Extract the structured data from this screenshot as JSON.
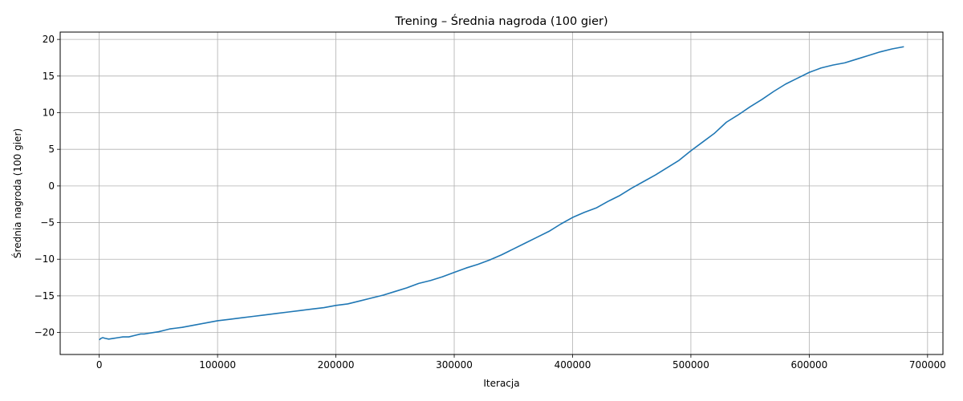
{
  "chart_data": {
    "type": "line",
    "title": "Trening – Średnia nagroda (100 gier)",
    "xlabel": "Iteracja",
    "ylabel": "Średnia nagroda (100 gier)",
    "xlim": [
      -33000,
      713000
    ],
    "ylim": [
      -23.0,
      21.0
    ],
    "xticks": [
      0,
      100000,
      200000,
      300000,
      400000,
      500000,
      600000,
      700000
    ],
    "xtick_labels": [
      "0",
      "100000",
      "200000",
      "300000",
      "400000",
      "500000",
      "600000",
      "700000"
    ],
    "yticks": [
      -20,
      -15,
      -10,
      -5,
      0,
      5,
      10,
      15,
      20
    ],
    "ytick_labels": [
      "−20",
      "−15",
      "−10",
      "−5",
      "0",
      "5",
      "10",
      "15",
      "20"
    ],
    "grid": true,
    "line_color": "#1f77b4",
    "series": [
      {
        "x": [
          0,
          1500,
          3000,
          5000,
          8000,
          12000,
          16000,
          20000,
          25000,
          30000,
          35000,
          38000,
          42000,
          46000,
          50000,
          55000,
          60000,
          65000,
          70000,
          80000,
          90000,
          100000,
          110000,
          120000,
          130000,
          140000,
          150000,
          160000,
          170000,
          180000,
          190000,
          200000,
          210000,
          220000,
          230000,
          240000,
          250000,
          260000,
          270000,
          280000,
          290000,
          300000,
          310000,
          320000,
          330000,
          340000,
          350000,
          360000,
          370000,
          380000,
          390000,
          400000,
          410000,
          420000,
          430000,
          440000,
          450000,
          460000,
          470000,
          480000,
          490000,
          500000,
          510000,
          520000,
          530000,
          540000,
          550000,
          560000,
          570000,
          580000,
          590000,
          600000,
          610000,
          620000,
          630000,
          640000,
          650000,
          660000,
          670000,
          680000
        ],
        "y": [
          -21.0,
          -20.8,
          -20.7,
          -20.8,
          -20.9,
          -20.8,
          -20.7,
          -20.6,
          -20.6,
          -20.4,
          -20.2,
          -20.2,
          -20.1,
          -20.0,
          -19.9,
          -19.7,
          -19.5,
          -19.4,
          -19.3,
          -19.0,
          -18.7,
          -18.4,
          -18.2,
          -18.0,
          -17.8,
          -17.6,
          -17.4,
          -17.2,
          -17.0,
          -16.8,
          -16.6,
          -16.3,
          -16.1,
          -15.7,
          -15.3,
          -14.9,
          -14.4,
          -13.9,
          -13.3,
          -12.9,
          -12.4,
          -11.8,
          -11.2,
          -10.7,
          -10.1,
          -9.4,
          -8.6,
          -7.8,
          -7.0,
          -6.2,
          -5.2,
          -4.3,
          -3.6,
          -3.0,
          -2.1,
          -1.3,
          -0.3,
          0.6,
          1.5,
          2.5,
          3.5,
          4.8,
          6.0,
          7.2,
          8.7,
          9.7,
          10.8,
          11.8,
          12.9,
          13.9,
          14.7,
          15.5,
          16.1,
          16.5,
          16.8,
          17.3,
          17.8,
          18.3,
          18.7,
          19.0
        ]
      }
    ]
  }
}
